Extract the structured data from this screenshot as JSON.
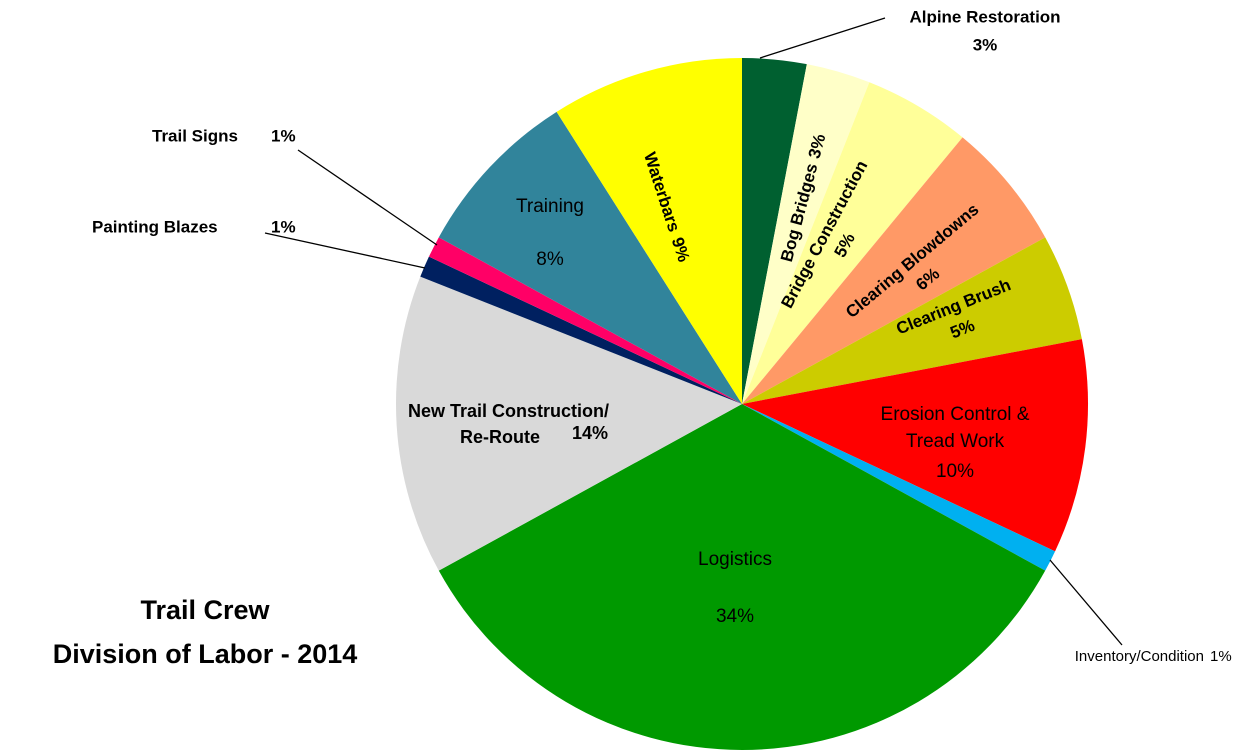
{
  "chart_data": {
    "type": "pie",
    "title": [
      "Trail Crew",
      "Division of Labor - 2014"
    ],
    "categories": [
      "Alpine Restoration",
      "Bog Bridges",
      "Bridge Construction",
      "Clearing Blowdowns",
      "Clearing Brush",
      "Erosion Control &\nTread Work",
      "Inventory/Condition",
      "Logistics",
      "New Trail Construction/\nRe-Route",
      "Painting Blazes",
      "Trail Signs",
      "Training",
      "Waterbars"
    ],
    "values": [
      3,
      3,
      5,
      6,
      5,
      10,
      1,
      34,
      14,
      1,
      1,
      8,
      9
    ],
    "value_labels": [
      "3%",
      "3%",
      "5%",
      "6%",
      "5%",
      "10%",
      "1%",
      "34%",
      "14%",
      "1%",
      "1%",
      "8%",
      "9%"
    ],
    "colors": [
      "#006030",
      "#ffffc8",
      "#ffff99",
      "#ff9966",
      "#cccc00",
      "#ff0000",
      "#00b0f0",
      "#009900",
      "#d9d9d9",
      "#002060",
      "#ff0066",
      "#31849b",
      "#ffff00"
    ]
  }
}
